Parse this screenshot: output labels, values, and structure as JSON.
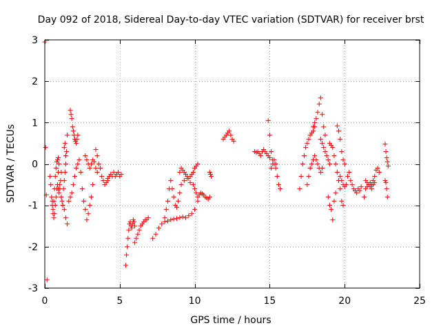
{
  "chart_data": {
    "type": "scatter",
    "title": "Day 092 of 2018, Sidereal Day-to-day VTEC variation (SDTVAR) for receiver brst",
    "xlabel": "GPS time / hours",
    "ylabel": "SDTVAR / TECUs",
    "xlim": [
      0,
      25
    ],
    "ylim": [
      -3,
      3
    ],
    "x_ticks": [
      0,
      5,
      10,
      15,
      20,
      25
    ],
    "x_tick_labels": [
      "0",
      "5",
      "10",
      "15",
      "20",
      "25"
    ],
    "y_ticks": [
      -3,
      -2,
      -1,
      0,
      1,
      2,
      3
    ],
    "y_tick_labels": [
      "-3",
      "-2",
      "-1",
      "0",
      "1",
      "2",
      "3"
    ],
    "grid": true,
    "marker": "+",
    "color": "#ff0000",
    "series": [
      {
        "name": "SDTVAR",
        "segments": [
          {
            "x": [
              0.0,
              0.05,
              0.1,
              0.15
            ],
            "y": [
              2.95,
              0.4,
              -0.75,
              -2.8
            ]
          },
          {
            "x": [
              0.35,
              0.4,
              0.45,
              0.5,
              0.55,
              0.6,
              0.65,
              0.7,
              0.75,
              0.8,
              0.85,
              0.9,
              0.95
            ],
            "y": [
              -0.3,
              -0.5,
              -0.8,
              -1.0,
              -1.2,
              -0.9,
              -0.6,
              -0.3,
              -0.1,
              0.05,
              0.1,
              0.15,
              0.0
            ]
          },
          {
            "x": [
              0.5,
              0.55,
              0.6,
              0.65,
              0.7,
              0.75,
              0.8,
              0.85,
              0.9,
              0.95,
              1.0,
              1.05,
              1.1
            ],
            "y": [
              -0.9,
              -1.1,
              -1.3,
              -1.2,
              -1.0,
              -0.8,
              -0.6,
              -0.5,
              -0.6,
              -0.7,
              -0.6,
              -0.4,
              -0.2
            ]
          },
          {
            "x": [
              0.9,
              1.0,
              1.1,
              1.2,
              1.3,
              1.4,
              1.5
            ],
            "y": [
              -0.2,
              -0.5,
              -0.8,
              -1.0,
              -1.1,
              -1.3,
              -1.45
            ]
          },
          {
            "x": [
              1.1,
              1.15,
              1.2,
              1.25,
              1.3,
              1.35,
              1.4,
              1.45,
              1.5
            ],
            "y": [
              -0.8,
              -0.9,
              -1.0,
              -0.6,
              -0.4,
              -0.2,
              0.0,
              0.3,
              0.7
            ]
          },
          {
            "x": [
              1.3,
              1.35,
              1.4
            ],
            "y": [
              0.4,
              0.5,
              0.2
            ]
          },
          {
            "x": [
              1.7,
              1.75,
              1.8,
              1.85,
              1.9,
              1.95,
              2.0,
              2.05,
              2.1,
              2.15,
              2.2
            ],
            "y": [
              1.3,
              1.2,
              1.1,
              0.9,
              0.8,
              0.7,
              0.6,
              0.55,
              0.5,
              0.6,
              0.7
            ]
          },
          {
            "x": [
              1.6,
              1.7,
              1.8,
              1.9,
              2.0,
              2.1,
              2.2,
              2.3
            ],
            "y": [
              -0.9,
              -0.8,
              -0.7,
              -0.5,
              -0.3,
              -0.1,
              0.0,
              0.1
            ]
          },
          {
            "x": [
              2.4,
              2.5,
              2.6,
              2.7,
              2.8,
              2.9,
              3.0,
              3.1,
              3.2
            ],
            "y": [
              -0.2,
              -0.6,
              -0.9,
              -1.1,
              -1.35,
              -1.2,
              -1.0,
              -0.8,
              -0.5
            ]
          },
          {
            "x": [
              2.7,
              2.8,
              2.9,
              3.0,
              3.1,
              3.2,
              3.3,
              3.4,
              3.5
            ],
            "y": [
              0.2,
              0.1,
              0.0,
              -0.1,
              0.0,
              0.1,
              0.05,
              -0.1,
              -0.2
            ]
          },
          {
            "x": [
              3.4,
              3.5,
              3.6,
              3.7,
              3.8,
              3.9,
              4.0,
              4.1,
              4.2
            ],
            "y": [
              0.35,
              0.2,
              0.0,
              -0.1,
              -0.3,
              -0.4,
              -0.5,
              -0.45,
              -0.4
            ]
          },
          {
            "x": [
              4.2,
              4.3,
              4.4,
              4.5,
              4.6,
              4.7,
              4.8,
              4.9,
              5.0,
              5.1
            ],
            "y": [
              -0.35,
              -0.3,
              -0.25,
              -0.3,
              -0.2,
              -0.3,
              -0.25,
              -0.2,
              -0.3,
              -0.25
            ]
          },
          {
            "x": [
              5.4,
              5.45,
              5.5,
              5.55,
              5.6,
              5.65,
              5.7,
              5.75,
              5.8,
              5.85,
              5.9,
              5.95,
              6.0
            ],
            "y": [
              -2.45,
              -2.2,
              -2.0,
              -1.8,
              -1.6,
              -1.45,
              -1.4,
              -1.5,
              -1.55,
              -1.45,
              -1.35,
              -1.4,
              -1.5
            ]
          },
          {
            "x": [
              6.0,
              6.1,
              6.2,
              6.3,
              6.4,
              6.5,
              6.6,
              6.7,
              6.8,
              6.9
            ],
            "y": [
              -1.9,
              -1.8,
              -1.7,
              -1.6,
              -1.5,
              -1.45,
              -1.4,
              -1.35,
              -1.35,
              -1.3
            ]
          },
          {
            "x": [
              7.2,
              7.4,
              7.6,
              7.8,
              8.0,
              8.2,
              8.4,
              8.6,
              8.8,
              9.0,
              9.2,
              9.4,
              9.6,
              9.8,
              10.0,
              10.2
            ],
            "y": [
              -1.8,
              -1.7,
              -1.55,
              -1.45,
              -1.4,
              -1.38,
              -1.35,
              -1.33,
              -1.32,
              -1.3,
              -1.28,
              -1.3,
              -1.25,
              -1.2,
              -1.1,
              -0.9
            ]
          },
          {
            "x": [
              8.0,
              8.1,
              8.2,
              8.3,
              8.4,
              8.5,
              8.6,
              8.7,
              8.8,
              8.9,
              9.0
            ],
            "y": [
              -1.3,
              -1.1,
              -0.9,
              -0.6,
              -0.4,
              -0.6,
              -0.8,
              -1.0,
              -1.05,
              -0.9,
              -0.7
            ]
          },
          {
            "x": [
              9.0,
              9.1,
              9.2,
              9.3,
              9.4,
              9.5,
              9.6,
              9.7,
              9.8,
              9.9,
              10.0,
              10.1,
              10.2
            ],
            "y": [
              -0.2,
              -0.1,
              -0.15,
              -0.2,
              -0.25,
              -0.3,
              -0.35,
              -0.3,
              -0.25,
              -0.2,
              -0.1,
              -0.05,
              0.0
            ]
          },
          {
            "x": [
              9.1,
              9.3,
              9.5,
              9.7,
              9.9
            ],
            "y": [
              -0.5,
              -0.4,
              -0.35,
              -0.45,
              -0.5
            ]
          },
          {
            "x": [
              10.0,
              10.1,
              10.2,
              10.3,
              10.4,
              10.5,
              10.6,
              10.7,
              10.8,
              10.9,
              11.0
            ],
            "y": [
              -0.6,
              -0.7,
              -0.8,
              -0.75,
              -0.7,
              -0.72,
              -0.75,
              -0.8,
              -0.82,
              -0.85,
              -0.8
            ]
          },
          {
            "x": [
              11.0,
              11.05,
              11.1
            ],
            "y": [
              -0.2,
              -0.25,
              -0.3
            ]
          },
          {
            "x": [
              11.9,
              12.0,
              12.1,
              12.2,
              12.3,
              12.4,
              12.5,
              12.6
            ],
            "y": [
              0.6,
              0.65,
              0.7,
              0.75,
              0.8,
              0.7,
              0.6,
              0.55
            ]
          },
          {
            "x": [
              14.0,
              14.1,
              14.2,
              14.3,
              14.4,
              14.5,
              14.6,
              14.7,
              14.8,
              14.9,
              15.0
            ],
            "y": [
              0.3,
              0.28,
              0.3,
              0.25,
              0.2,
              0.3,
              0.35,
              0.3,
              0.25,
              0.2,
              0.15
            ]
          },
          {
            "x": [
              14.9,
              15.0,
              15.1,
              15.2,
              15.3,
              15.4,
              15.5,
              15.6,
              15.7
            ],
            "y": [
              1.05,
              0.7,
              0.3,
              0.1,
              0.0,
              -0.1,
              -0.3,
              -0.5,
              -0.6
            ]
          },
          {
            "x": [
              15.1,
              15.2,
              15.3,
              15.4
            ],
            "y": [
              -0.1,
              0.0,
              0.1,
              0.0
            ]
          },
          {
            "x": [
              17.0,
              17.1,
              17.2,
              17.3,
              17.4,
              17.5,
              17.6,
              17.7,
              17.8,
              17.9,
              18.0
            ],
            "y": [
              -0.6,
              -0.3,
              0.0,
              0.2,
              0.4,
              0.5,
              0.6,
              0.7,
              0.75,
              0.8,
              0.9
            ]
          },
          {
            "x": [
              17.5,
              17.6,
              17.7,
              17.8,
              17.9,
              18.0,
              18.1,
              18.2,
              18.3,
              18.4,
              18.5
            ],
            "y": [
              -0.5,
              -0.3,
              -0.1,
              0.0,
              0.1,
              0.2,
              0.1,
              0.0,
              -0.1,
              -0.2,
              -0.1
            ]
          },
          {
            "x": [
              17.9,
              18.0,
              18.1,
              18.2,
              18.3,
              18.4,
              18.5,
              18.6,
              18.7
            ],
            "y": [
              0.9,
              1.0,
              1.1,
              1.25,
              1.45,
              1.6,
              1.2,
              0.9,
              0.7
            ]
          },
          {
            "x": [
              18.4,
              18.5,
              18.6,
              18.7,
              18.8,
              18.9,
              19.0
            ],
            "y": [
              0.6,
              0.5,
              0.4,
              0.3,
              0.2,
              0.1,
              0.0
            ]
          },
          {
            "x": [
              18.9,
              19.0,
              19.1,
              19.2,
              19.3,
              19.4
            ],
            "y": [
              -0.8,
              -1.0,
              -1.1,
              -1.35,
              -0.9,
              -0.7
            ]
          },
          {
            "x": [
              19.0,
              19.1,
              19.2,
              19.3,
              19.4,
              19.5,
              19.6,
              19.7,
              19.8,
              19.9
            ],
            "y": [
              0.5,
              0.45,
              0.4,
              0.2,
              0.0,
              -0.2,
              -0.4,
              -0.6,
              -0.9,
              -1.0
            ]
          },
          {
            "x": [
              19.5,
              19.6,
              19.7,
              19.8,
              19.9,
              20.0
            ],
            "y": [
              0.92,
              0.8,
              0.6,
              0.3,
              0.1,
              0.0
            ]
          },
          {
            "x": [
              19.7,
              19.8,
              19.9,
              20.0,
              20.1,
              20.2,
              20.3,
              20.4,
              20.5,
              20.6,
              20.7,
              20.8,
              20.9,
              21.0,
              21.1
            ],
            "y": [
              -0.3,
              -0.4,
              -0.5,
              -0.55,
              -0.5,
              -0.3,
              -0.2,
              -0.4,
              -0.5,
              -0.6,
              -0.65,
              -0.7,
              -0.6,
              -0.65,
              -0.55
            ]
          },
          {
            "x": [
              21.3,
              21.4,
              21.5,
              21.6,
              21.7,
              21.8,
              21.9,
              22.0,
              22.1,
              22.2,
              22.3
            ],
            "y": [
              -0.8,
              -0.6,
              -0.55,
              -0.5,
              -0.45,
              -0.5,
              -0.4,
              -0.3,
              -0.15,
              -0.1,
              -0.2
            ]
          },
          {
            "x": [
              21.4,
              21.5,
              21.6,
              21.7,
              21.8,
              21.9,
              22.0
            ],
            "y": [
              -0.4,
              -0.45,
              -0.5,
              -0.55,
              -0.6,
              -0.5,
              -0.45
            ]
          },
          {
            "x": [
              22.7,
              22.75,
              22.8,
              22.85,
              22.9
            ],
            "y": [
              0.48,
              0.3,
              0.15,
              0.05,
              -0.05
            ]
          },
          {
            "x": [
              22.7,
              22.75,
              22.8,
              22.85
            ],
            "y": [
              -0.4,
              -0.45,
              -0.6,
              -0.8
            ]
          }
        ]
      }
    ]
  }
}
